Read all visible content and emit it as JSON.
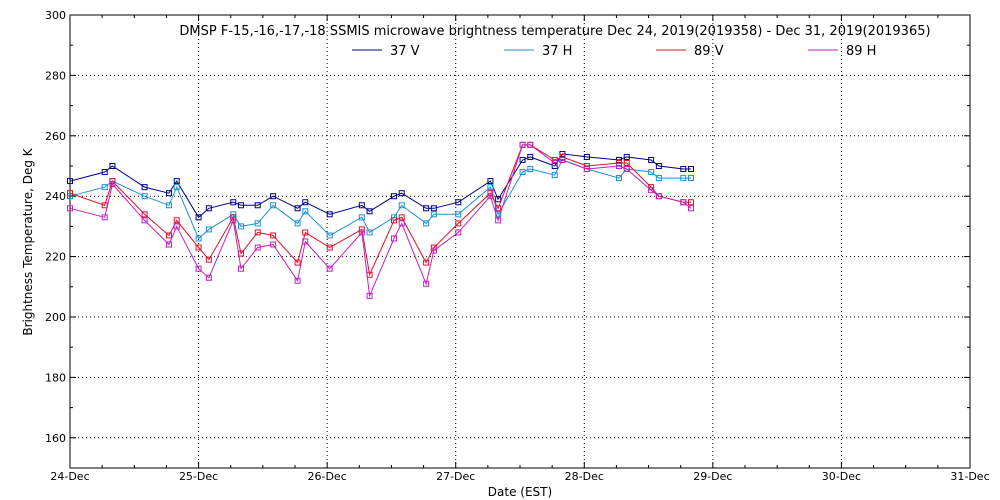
{
  "chart_data": {
    "type": "line",
    "title": "DMSP F-15,-16,-17,-18 SSMIS microwave brightness temperature Dec 24, 2019(2019358) - Dec 31, 2019(2019365)",
    "xlabel": "Date (EST)",
    "ylabel": "Brightness Temperature, Deg K",
    "xlim": [
      0,
      7
    ],
    "ylim": [
      150,
      300
    ],
    "yticks": [
      160,
      180,
      200,
      220,
      240,
      260,
      280,
      300
    ],
    "xtick_labels": [
      "24-Dec",
      "25-Dec",
      "26-Dec",
      "27-Dec",
      "28-Dec",
      "29-Dec",
      "30-Dec",
      "31-Dec"
    ],
    "grid": true,
    "legend_position": "top-center",
    "x": [
      0.0,
      0.27,
      0.33,
      0.58,
      0.77,
      0.83,
      1.0,
      1.08,
      1.27,
      1.33,
      1.46,
      1.58,
      1.77,
      1.83,
      2.02,
      2.27,
      2.33,
      2.52,
      2.58,
      2.77,
      2.83,
      3.02,
      3.27,
      3.33,
      3.52,
      3.58,
      3.77,
      3.83,
      4.02,
      4.27,
      4.33,
      4.52,
      4.58,
      4.77,
      4.83
    ],
    "series": [
      {
        "name": "37 V",
        "color": "#00008b",
        "values": [
          245,
          248,
          250,
          243,
          241,
          245,
          233,
          236,
          238,
          237,
          237,
          240,
          236,
          238,
          234,
          237,
          235,
          240,
          241,
          236,
          236,
          238,
          245,
          239,
          252,
          253,
          250,
          254,
          253,
          252,
          253,
          252,
          250,
          249,
          249
        ]
      },
      {
        "name": "37 H",
        "color": "#1e90d0",
        "values": [
          240,
          243,
          245,
          240,
          237,
          243,
          226,
          229,
          234,
          230,
          231,
          237,
          231,
          235,
          227,
          233,
          228,
          233,
          237,
          231,
          234,
          234,
          243,
          234,
          248,
          249,
          247,
          252,
          249,
          246,
          249,
          248,
          246,
          246,
          246
        ]
      },
      {
        "name": "89 V",
        "color": "#e0102a",
        "values": [
          241,
          237,
          245,
          234,
          227,
          232,
          223,
          219,
          233,
          221,
          228,
          227,
          218,
          228,
          223,
          229,
          214,
          232,
          233,
          218,
          223,
          231,
          241,
          236,
          257,
          257,
          252,
          253,
          250,
          251,
          251,
          243,
          240,
          238,
          238
        ]
      },
      {
        "name": "89 H",
        "color": "#c020c0",
        "values": [
          236,
          233,
          244,
          232,
          224,
          230,
          216,
          213,
          232,
          216,
          223,
          224,
          212,
          225,
          216,
          228,
          207,
          226,
          231,
          211,
          222,
          228,
          240,
          232,
          257,
          257,
          251,
          252,
          249,
          250,
          249,
          242,
          240,
          238,
          236
        ]
      }
    ]
  }
}
